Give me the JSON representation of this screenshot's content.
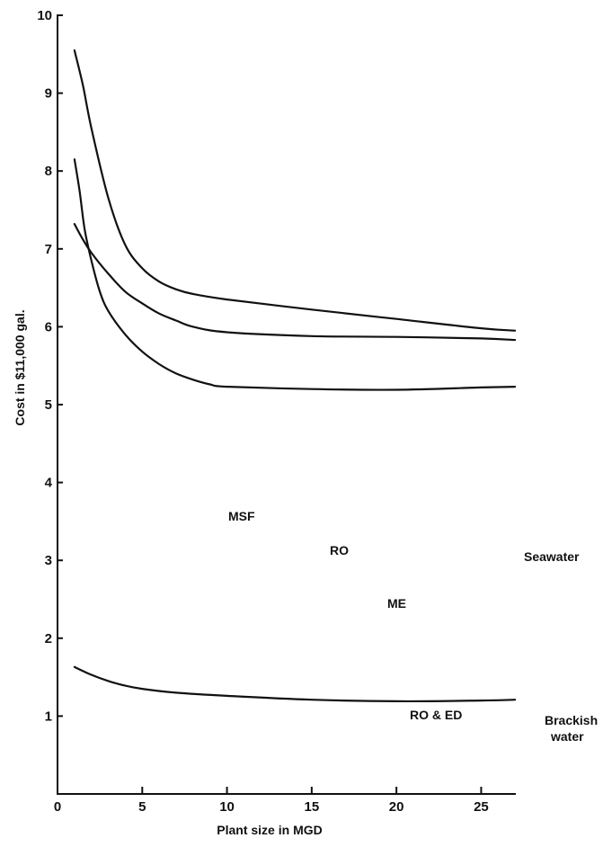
{
  "chart_data": {
    "type": "line",
    "xlabel": "Plant size in MGD",
    "ylabel": "Cost in $11,000 gal.",
    "xlim": [
      0,
      28
    ],
    "ylim": [
      0,
      10
    ],
    "x_ticks": [
      0,
      5,
      10,
      15,
      20,
      25
    ],
    "y_ticks": [
      1,
      2,
      3,
      4,
      5,
      6,
      7,
      8,
      9,
      10
    ],
    "grid": false,
    "legend": "none",
    "series": [
      {
        "name": "MSF",
        "x": [
          1.0,
          1.5,
          2.0,
          3.0,
          4.0,
          5.0,
          6.0,
          7.0,
          8.0,
          10.0,
          15.0,
          20.0,
          25.0,
          27.0
        ],
        "y": [
          9.55,
          9.1,
          8.55,
          7.65,
          7.05,
          6.75,
          6.58,
          6.48,
          6.42,
          6.35,
          6.22,
          6.1,
          5.98,
          5.95
        ]
      },
      {
        "name": "RO",
        "x": [
          1.0,
          1.5,
          2.0,
          3.0,
          4.0,
          5.0,
          6.0,
          7.0,
          8.0,
          10.0,
          15.0,
          20.0,
          25.0,
          27.0
        ],
        "y": [
          7.32,
          7.12,
          6.95,
          6.68,
          6.45,
          6.3,
          6.17,
          6.08,
          6.0,
          5.93,
          5.88,
          5.87,
          5.85,
          5.83
        ]
      },
      {
        "name": "ME",
        "x": [
          1.0,
          1.3,
          1.6,
          2.0,
          2.5,
          3.0,
          4.0,
          5.0,
          6.0,
          7.0,
          8.0,
          9.0,
          10.0,
          15.0,
          20.0,
          25.0,
          27.0
        ],
        "y": [
          8.15,
          7.75,
          7.25,
          6.85,
          6.45,
          6.2,
          5.9,
          5.68,
          5.52,
          5.4,
          5.32,
          5.26,
          5.23,
          5.2,
          5.19,
          5.22,
          5.23
        ]
      },
      {
        "name": "RO & ED",
        "x": [
          1.0,
          2.0,
          3.0,
          4.0,
          5.0,
          7.0,
          10.0,
          15.0,
          20.0,
          25.0,
          27.0
        ],
        "y": [
          1.63,
          1.53,
          1.45,
          1.39,
          1.35,
          1.3,
          1.26,
          1.21,
          1.19,
          1.2,
          1.21
        ]
      }
    ],
    "annotations": {
      "msf": "MSF",
      "ro": "RO",
      "me": "ME",
      "seawater": "Seawater",
      "ro_ed": "RO & ED",
      "brackish_line1": "Brackish",
      "brackish_line2": "water"
    }
  }
}
